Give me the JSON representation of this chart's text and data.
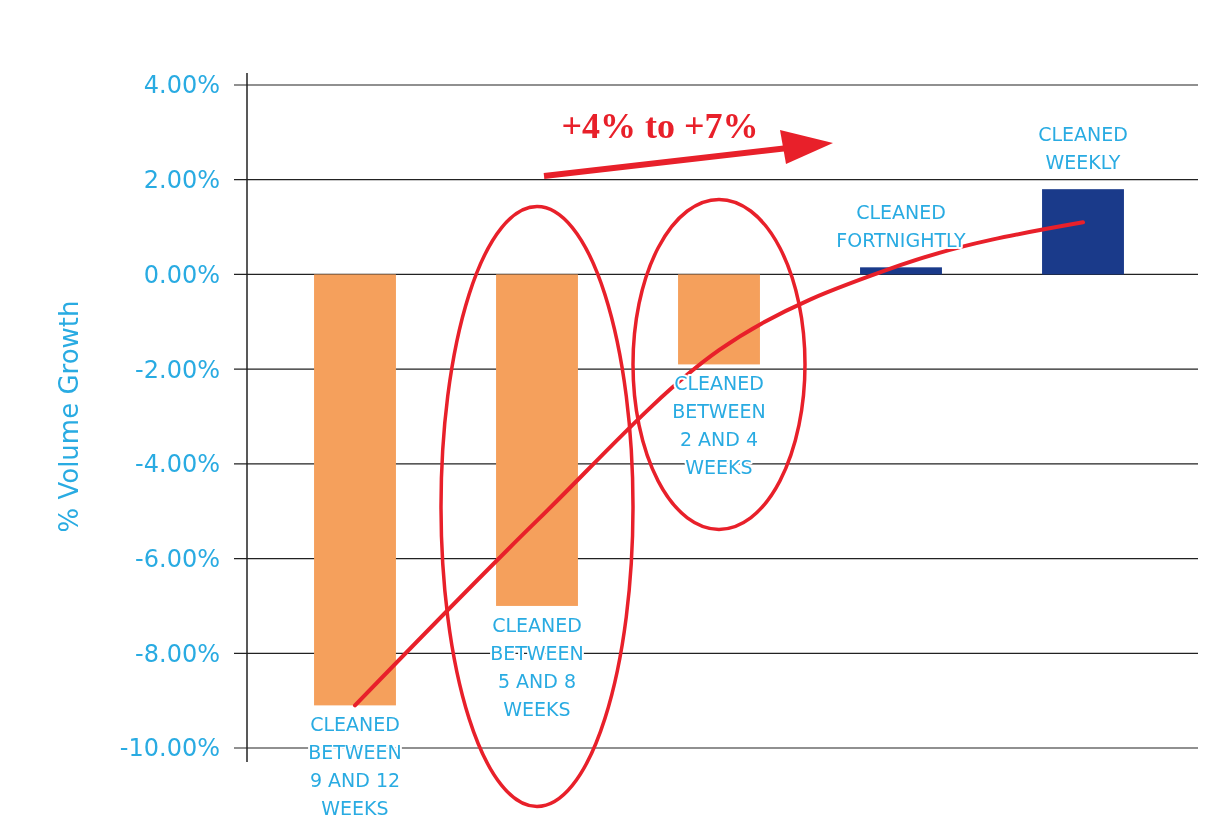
{
  "chart_data": {
    "type": "bar",
    "ylabel": "% Volume Growth",
    "categories": [
      "CLEANED BETWEEN 9 AND 12 WEEKS",
      "CLEANED BETWEEN 5 AND 8 WEEKS",
      "CLEANED BETWEEN 2 AND 4 WEEKS",
      "CLEANED FORTNIGHTLY",
      "CLEANED WEEKLY"
    ],
    "series": [
      {
        "values": [
          -9.1,
          -7.0,
          -1.9,
          0.15,
          1.8
        ],
        "colors": [
          "#f5a05c",
          "#f5a05c",
          "#f5a05c",
          "#1a3a8a",
          "#1a3a8a"
        ]
      },
      {
        "type": "line",
        "color": "#e8202a",
        "values": [
          -9.1,
          -5.2,
          -1.6,
          0.2,
          1.1
        ]
      }
    ],
    "ylim": [
      -10,
      4
    ],
    "yticks": [
      {
        "value": -10,
        "label": "-10.00%"
      },
      {
        "value": -8,
        "label": "-8.00%"
      },
      {
        "value": -6,
        "label": "-6.00%"
      },
      {
        "value": -4,
        "label": "-4.00%"
      },
      {
        "value": -2,
        "label": "-2.00%"
      },
      {
        "value": 0,
        "label": "0.00%"
      },
      {
        "value": 2,
        "label": "2.00%"
      },
      {
        "value": 4,
        "label": "4.00%"
      }
    ],
    "grid": "y",
    "annotations": [
      "+4% to +7%"
    ]
  }
}
